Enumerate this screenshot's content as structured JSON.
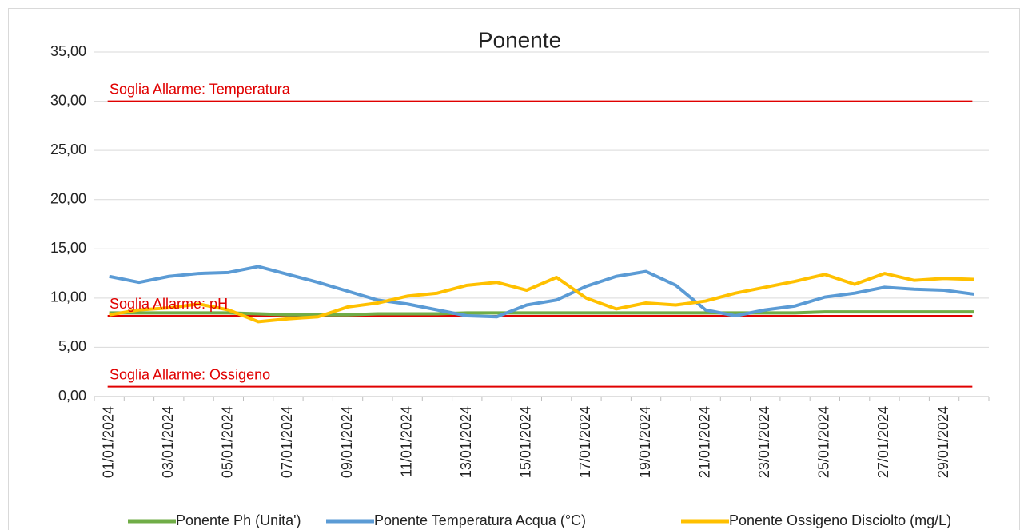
{
  "chart_data": {
    "type": "line",
    "title": "Ponente",
    "categories": [
      "01/01/2024",
      null,
      "03/01/2024",
      null,
      "05/01/2024",
      null,
      "07/01/2024",
      null,
      "09/01/2024",
      null,
      "11/01/2024",
      null,
      "13/01/2024",
      null,
      "15/01/2024",
      null,
      "17/01/2024",
      null,
      "19/01/2024",
      null,
      "21/01/2024",
      null,
      "23/01/2024",
      null,
      "25/01/2024",
      null,
      "27/01/2024",
      null,
      "29/01/2024",
      null
    ],
    "series": [
      {
        "name": "Ponente Ph (Unita')",
        "color": "#70ad47",
        "values": [
          8.5,
          8.5,
          8.5,
          8.5,
          8.5,
          8.4,
          8.3,
          8.3,
          8.3,
          8.4,
          8.4,
          8.4,
          8.5,
          8.5,
          8.5,
          8.5,
          8.5,
          8.5,
          8.5,
          8.5,
          8.5,
          8.5,
          8.5,
          8.5,
          8.6,
          8.6,
          8.6,
          8.6,
          8.6,
          8.6
        ]
      },
      {
        "name": "Ponente Temperatura Acqua (°C)",
        "color": "#5b9bd5",
        "values": [
          12.2,
          11.6,
          12.2,
          12.5,
          12.6,
          13.2,
          12.4,
          11.6,
          10.7,
          9.8,
          9.4,
          8.8,
          8.2,
          8.1,
          9.3,
          9.8,
          11.2,
          12.2,
          12.7,
          11.3,
          8.8,
          8.2,
          8.8,
          9.2,
          10.1,
          10.5,
          11.1,
          10.9,
          10.8,
          10.4
        ]
      },
      {
        "name": "Ponente Ossigeno Disciolto (mg/L)",
        "color": "#ffc000",
        "values": [
          8.3,
          8.8,
          9.0,
          9.4,
          8.8,
          7.6,
          7.9,
          8.1,
          9.1,
          9.5,
          10.2,
          10.5,
          11.3,
          11.6,
          10.8,
          12.1,
          10.0,
          8.9,
          9.5,
          9.3,
          9.7,
          10.5,
          11.1,
          11.7,
          12.4,
          11.4,
          12.5,
          11.8,
          12.0,
          11.9
        ]
      }
    ],
    "thresholds": [
      {
        "label": "Soglia Allarme: Temperatura",
        "value": 30,
        "color": "#e00000"
      },
      {
        "label": "Soglia Allarme: pH",
        "value": 8.2,
        "color": "#e00000"
      },
      {
        "label": "Soglia Allarme: Ossigeno",
        "value": 1,
        "color": "#e00000"
      }
    ],
    "ylim": [
      0,
      35
    ],
    "yticks": [
      {
        "value": 0,
        "label": "0,00"
      },
      {
        "value": 5,
        "label": "5,00"
      },
      {
        "value": 10,
        "label": "10,00"
      },
      {
        "value": 15,
        "label": "15,00"
      },
      {
        "value": 20,
        "label": "20,00"
      },
      {
        "value": 25,
        "label": "25,00"
      },
      {
        "value": 30,
        "label": "30,00"
      },
      {
        "value": 35,
        "label": "35,00"
      }
    ],
    "grid": true,
    "legend": "bottom"
  }
}
